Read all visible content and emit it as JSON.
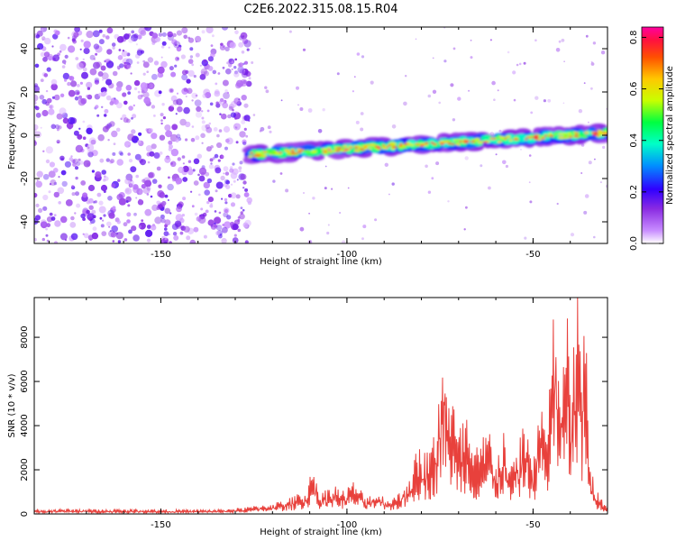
{
  "title": "C2E6.2022.315.08.15.R04",
  "chart_data": [
    {
      "type": "heatmap",
      "xlabel": "Height of straight line (km)",
      "ylabel": "Frequency (Hz)",
      "xlim": [
        -184,
        -30
      ],
      "ylim": [
        -50,
        50
      ],
      "xticks": [
        -150,
        -100,
        -50
      ],
      "yticks": [
        -40,
        -20,
        0,
        20,
        40
      ],
      "colorbar": {
        "label": "Normalized spectral amplitude",
        "range": [
          0.0,
          0.84
        ],
        "ticks": [
          0.0,
          0.2,
          0.4,
          0.6,
          0.8
        ],
        "colors": [
          "#ffffff",
          "#c88cff",
          "#8a2be2",
          "#3000ff",
          "#0090ff",
          "#00ffc8",
          "#00ff40",
          "#c8ff00",
          "#ffc800",
          "#ff5000",
          "#ff1040",
          "#ff00a0"
        ]
      },
      "ridge": {
        "start_km": -126,
        "end_km": -30,
        "freq_start_hz": -9,
        "freq_end_hz": 1,
        "peak_amplitude": 0.84
      },
      "noise_region": {
        "x_range": [
          -184,
          -126
        ],
        "amplitude": 0.18
      }
    },
    {
      "type": "line",
      "xlabel": "Height of straight line (km)",
      "ylabel": "SNR (10 * v/v)",
      "xlim": [
        -184,
        -30
      ],
      "ylim": [
        0,
        9800
      ],
      "xticks": [
        -150,
        -100,
        -50
      ],
      "yticks": [
        0,
        2000,
        4000,
        6000,
        8000
      ],
      "color": "#e8413c",
      "x": [
        -184,
        -175,
        -165,
        -155,
        -145,
        -135,
        -128,
        -122,
        -118,
        -114,
        -111,
        -109,
        -107,
        -104,
        -101,
        -98,
        -95,
        -92,
        -89,
        -86,
        -84,
        -82,
        -80,
        -78,
        -76,
        -74,
        -73,
        -72,
        -70,
        -68,
        -66,
        -64,
        -62,
        -60,
        -58,
        -56,
        -54,
        -52,
        -50,
        -48,
        -46,
        -45,
        -44,
        -43,
        -42,
        -41,
        -40,
        -39,
        -38,
        -37,
        -36,
        -35,
        -34,
        -33,
        -32,
        -31,
        -30
      ],
      "values": [
        150,
        180,
        160,
        170,
        150,
        160,
        220,
        350,
        450,
        650,
        900,
        1750,
        700,
        1150,
        850,
        1200,
        650,
        800,
        550,
        750,
        1200,
        2000,
        2600,
        2200,
        3300,
        7500,
        4200,
        4600,
        2900,
        3800,
        2200,
        2600,
        3300,
        2000,
        3200,
        1600,
        2600,
        3600,
        1900,
        4500,
        3200,
        6000,
        8900,
        4000,
        5800,
        9600,
        3700,
        6200,
        9900,
        5100,
        7700,
        2200,
        1500,
        900,
        600,
        400,
        300
      ]
    }
  ]
}
